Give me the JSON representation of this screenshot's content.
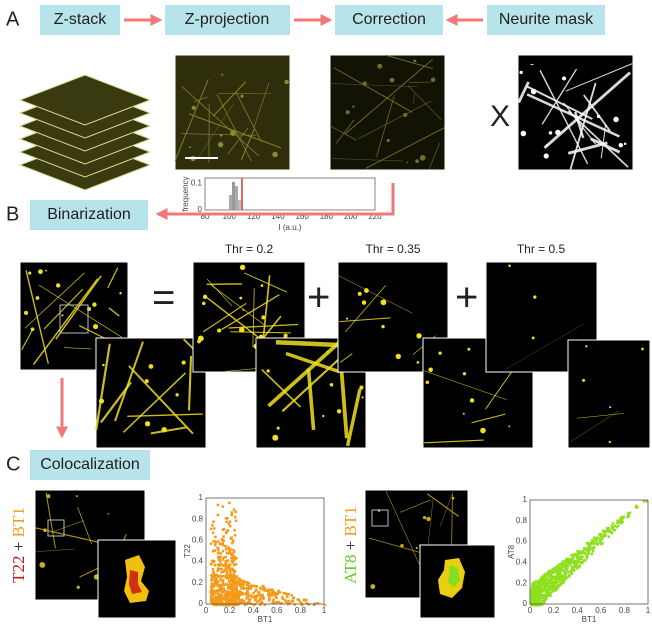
{
  "labels": {
    "a": "A",
    "b": "B",
    "c": "C"
  },
  "pipeline": [
    "Z-stack",
    "Z-projection",
    "Correction",
    "Neurite mask"
  ],
  "operator_x": "X",
  "histogram": {
    "ylabel": "frequency",
    "xlabel": "I (a.u.)",
    "xticks": [
      80,
      100,
      120,
      140,
      160,
      180,
      200,
      220
    ],
    "yticks": [
      0,
      0.1
    ]
  },
  "binarization": {
    "title": "Binarization",
    "equals": "=",
    "plus": "+",
    "thresholds": [
      "Thr = 0.2",
      "Thr = 0.35",
      "Thr = 0.5"
    ]
  },
  "colocalization": {
    "title": "Colocalization",
    "pairs": [
      {
        "marker": "T22",
        "plus": "+",
        "reference": "BT1",
        "xlabel": "BT1",
        "ylabel": "T22",
        "xticks": [
          0,
          0.2,
          0.4,
          0.6,
          0.8,
          1
        ],
        "yticks": [
          0,
          0.2,
          0.4,
          0.6,
          0.8,
          1
        ]
      },
      {
        "marker": "AT8",
        "plus": "+",
        "reference": "BT1",
        "xlabel": "BT1",
        "ylabel": "AT8",
        "xticks": [
          0,
          0.2,
          0.4,
          0.6,
          0.8,
          1
        ],
        "yticks": [
          0,
          0.2,
          0.4,
          0.6,
          0.8,
          1
        ]
      }
    ]
  }
}
